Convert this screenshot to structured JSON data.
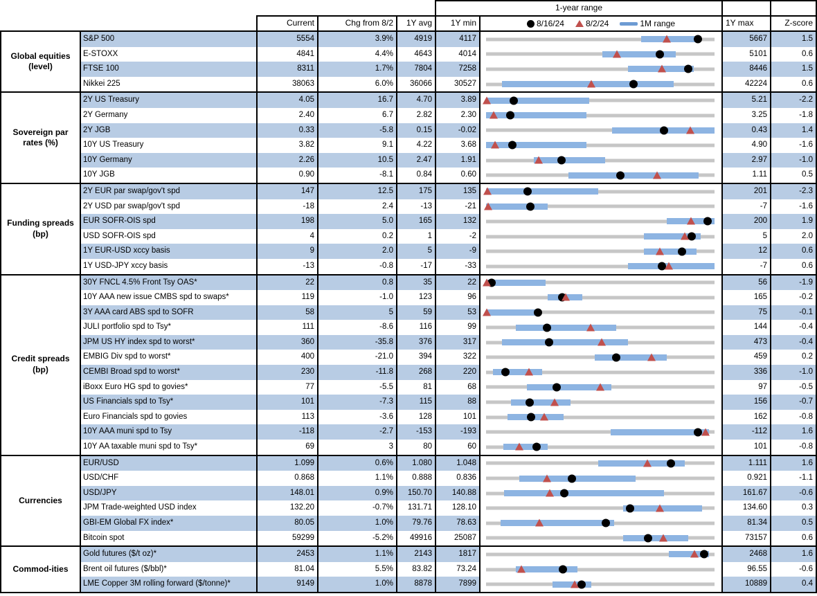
{
  "header": {
    "range_title": "1-year range",
    "cols": {
      "current": "Current",
      "chg": "Chg from 8/2",
      "avg": "1Y avg",
      "min": "1Y min",
      "max": "1Y max",
      "z": "Z-score"
    },
    "legend": {
      "dot": "8/16/24",
      "triangle": "8/2/24",
      "bar": "1M range"
    }
  },
  "colors": {
    "row_shade": "#b8cce4",
    "range_bar": "#8db4e2",
    "track": "#c6c6c6",
    "triangle": "#c0504d",
    "dot": "#000000",
    "legend_dash": "#6d9bd3",
    "border": "#000000"
  },
  "chart_data": {
    "type": "range-dot-table",
    "legend_position": "top",
    "marker_meaning": {
      "dot": "value on 8/16/24",
      "triangle": "value on 8/2/24",
      "bar": "1M range",
      "track": "1-year range from 1Y min to 1Y max"
    },
    "sections": [
      {
        "category": "Global equities (level)",
        "rows": [
          {
            "label": "S&P 500",
            "current": "5554",
            "chg": "3.9%",
            "avg": "4919",
            "min": "4117",
            "max": "5667",
            "z": "1.5",
            "bar": [
              0.68,
              0.93
            ],
            "dot": 0.927,
            "tri": 0.792
          },
          {
            "label": "E-STOXX",
            "current": "4841",
            "chg": "4.4%",
            "avg": "4643",
            "min": "4014",
            "max": "5101",
            "z": "0.6",
            "bar": [
              0.51,
              0.83
            ],
            "dot": 0.761,
            "tri": 0.573
          },
          {
            "label": "FTSE 100",
            "current": "8311",
            "chg": "1.7%",
            "avg": "7804",
            "min": "7258",
            "max": "8446",
            "z": "1.5",
            "bar": [
              0.62,
              0.91
            ],
            "dot": 0.886,
            "tri": 0.769
          },
          {
            "label": "Nikkei 225",
            "current": "38063",
            "chg": "6.0%",
            "avg": "36066",
            "min": "30527",
            "max": "42224",
            "z": "0.6",
            "bar": [
              0.07,
              0.82
            ],
            "dot": 0.644,
            "tri": 0.46
          }
        ]
      },
      {
        "category": "Sovereign par rates (%)",
        "rows": [
          {
            "label": "2Y US Treasury",
            "current": "4.05",
            "chg": "16.7",
            "avg": "4.70",
            "min": "3.89",
            "max": "5.21",
            "z": "-2.2",
            "bar": [
              0.0,
              0.45
            ],
            "dot": 0.121,
            "tri": 0.004
          },
          {
            "label": "2Y Germany",
            "current": "2.40",
            "chg": "6.7",
            "avg": "2.82",
            "min": "2.30",
            "max": "3.25",
            "z": "-1.8",
            "bar": [
              0.0,
              0.44
            ],
            "dot": 0.105,
            "tri": 0.032
          },
          {
            "label": "2Y JGB",
            "current": "0.33",
            "chg": "-5.8",
            "avg": "0.15",
            "min": "-0.02",
            "max": "0.43",
            "z": "1.4",
            "bar": [
              0.55,
              1.0
            ],
            "dot": 0.778,
            "tri": 0.895
          },
          {
            "label": "10Y US Treasury",
            "current": "3.82",
            "chg": "9.1",
            "avg": "4.22",
            "min": "3.68",
            "max": "4.90",
            "z": "-1.6",
            "bar": [
              0.0,
              0.44
            ],
            "dot": 0.115,
            "tri": 0.04
          },
          {
            "label": "10Y Germany",
            "current": "2.26",
            "chg": "10.5",
            "avg": "2.47",
            "min": "1.91",
            "max": "2.97",
            "z": "-1.0",
            "bar": [
              0.21,
              0.52
            ],
            "dot": 0.33,
            "tri": 0.231
          },
          {
            "label": "10Y JGB",
            "current": "0.90",
            "chg": "-8.1",
            "avg": "0.84",
            "min": "0.60",
            "max": "1.11",
            "z": "0.5",
            "bar": [
              0.36,
              0.93
            ],
            "dot": 0.588,
            "tri": 0.747
          }
        ]
      },
      {
        "category": "Funding spreads (bp)",
        "rows": [
          {
            "label": "2Y EUR par swap/gov't spd",
            "current": "147",
            "chg": "12.5",
            "avg": "175",
            "min": "135",
            "max": "201",
            "z": "-2.3",
            "bar": [
              0.0,
              0.49
            ],
            "dot": 0.182,
            "tri": 0.005
          },
          {
            "label": "2Y USD par swap/gov't spd",
            "current": "-18",
            "chg": "2.4",
            "avg": "-13",
            "min": "-21",
            "max": "-7",
            "z": "-1.6",
            "bar": [
              0.0,
              0.27
            ],
            "dot": 0.195,
            "tri": 0.01
          },
          {
            "label": "EUR SOFR-OIS spd",
            "current": "198",
            "chg": "5.0",
            "avg": "165",
            "min": "132",
            "max": "200",
            "z": "1.9",
            "bar": [
              0.79,
              1.0
            ],
            "dot": 0.97,
            "tri": 0.897
          },
          {
            "label": "USD SOFR-OIS spd",
            "current": "4",
            "chg": "0.2",
            "avg": "1",
            "min": "-2",
            "max": "5",
            "z": "2.0",
            "bar": [
              0.69,
              0.94
            ],
            "dot": 0.9,
            "tri": 0.87
          },
          {
            "label": "1Y EUR-USD xccy basis",
            "current": "9",
            "chg": "2.0",
            "avg": "5",
            "min": "-9",
            "max": "12",
            "z": "0.6",
            "bar": [
              0.69,
              0.92
            ],
            "dot": 0.857,
            "tri": 0.762
          },
          {
            "label": "1Y USD-JPY xccy basis",
            "current": "-13",
            "chg": "-0.8",
            "avg": "-17",
            "min": "-33",
            "max": "-7",
            "z": "0.6",
            "bar": [
              0.62,
              1.0
            ],
            "dot": 0.769,
            "tri": 0.8
          }
        ]
      },
      {
        "category": "Credit spreads (bp)",
        "rows": [
          {
            "label": "30Y FNCL 4.5% Front Tsy OAS*",
            "current": "22",
            "chg": "0.8",
            "avg": "35",
            "min": "22",
            "max": "56",
            "z": "-1.9",
            "bar": [
              0.0,
              0.26
            ],
            "dot": 0.025,
            "tri": 0.002
          },
          {
            "label": "10Y AAA new issue CMBS spd to swaps*",
            "current": "119",
            "chg": "-1.0",
            "avg": "123",
            "min": "96",
            "max": "165",
            "z": "-0.2",
            "bar": [
              0.27,
              0.42
            ],
            "dot": 0.333,
            "tri": 0.348
          },
          {
            "label": "3Y AAA card ABS spd to SOFR",
            "current": "58",
            "chg": "5",
            "avg": "59",
            "min": "53",
            "max": "75",
            "z": "-0.1",
            "bar": [
              0.0,
              0.23
            ],
            "dot": 0.227,
            "tri": 0.002
          },
          {
            "label": "JULI portfolio spd to Tsy*",
            "current": "111",
            "chg": "-8.6",
            "avg": "116",
            "min": "99",
            "max": "144",
            "z": "-0.4",
            "bar": [
              0.13,
              0.57
            ],
            "dot": 0.267,
            "tri": 0.458
          },
          {
            "label": "JPM US HY index spd to worst*",
            "current": "360",
            "chg": "-35.8",
            "avg": "376",
            "min": "317",
            "max": "473",
            "z": "-0.4",
            "bar": [
              0.07,
              0.62
            ],
            "dot": 0.276,
            "tri": 0.505
          },
          {
            "label": "EMBIG Div spd to worst*",
            "current": "400",
            "chg": "-21.0",
            "avg": "394",
            "min": "322",
            "max": "459",
            "z": "0.2",
            "bar": [
              0.475,
              0.79
            ],
            "dot": 0.569,
            "tri": 0.723
          },
          {
            "label": "CEMBI Broad spd to worst*",
            "current": "230",
            "chg": "-11.8",
            "avg": "268",
            "min": "220",
            "max": "336",
            "z": "-1.0",
            "bar": [
              0.03,
              0.245
            ],
            "dot": 0.086,
            "tri": 0.188
          },
          {
            "label": "iBoxx Euro HG spd to govies*",
            "current": "77",
            "chg": "-5.5",
            "avg": "81",
            "min": "68",
            "max": "97",
            "z": "-0.5",
            "bar": [
              0.18,
              0.55
            ],
            "dot": 0.31,
            "tri": 0.5
          },
          {
            "label": "US Financials spd to Tsy*",
            "current": "101",
            "chg": "-7.3",
            "avg": "115",
            "min": "88",
            "max": "156",
            "z": "-0.7",
            "bar": [
              0.11,
              0.37
            ],
            "dot": 0.191,
            "tri": 0.299
          },
          {
            "label": "Euro Financials spd to govies",
            "current": "113",
            "chg": "-3.6",
            "avg": "128",
            "min": "101",
            "max": "162",
            "z": "-0.8",
            "bar": [
              0.095,
              0.34
            ],
            "dot": 0.197,
            "tri": 0.256
          },
          {
            "label": "10Y AAA muni spd to Tsy",
            "current": "-118",
            "chg": "-2.7",
            "avg": "-153",
            "min": "-193",
            "max": "-112",
            "z": "1.6",
            "bar": [
              0.545,
              0.975
            ],
            "dot": 0.926,
            "tri": 0.96
          },
          {
            "label": "10Y AA taxable muni spd to Tsy*",
            "current": "69",
            "chg": "3",
            "avg": "80",
            "min": "60",
            "max": "101",
            "z": "-0.8",
            "bar": [
              0.075,
              0.27
            ],
            "dot": 0.22,
            "tri": 0.146
          }
        ]
      },
      {
        "category": "Currencies",
        "rows": [
          {
            "label": "EUR/USD",
            "current": "1.099",
            "chg": "0.6%",
            "avg": "1.080",
            "min": "1.048",
            "max": "1.111",
            "z": "1.6",
            "bar": [
              0.49,
              0.87
            ],
            "dot": 0.81,
            "tri": 0.705
          },
          {
            "label": "USD/CHF",
            "current": "0.868",
            "chg": "1.1%",
            "avg": "0.888",
            "min": "0.836",
            "max": "0.921",
            "z": "-1.1",
            "bar": [
              0.145,
              0.655
            ],
            "dot": 0.376,
            "tri": 0.266
          },
          {
            "label": "USD/JPY",
            "current": "148.01",
            "chg": "0.9%",
            "avg": "150.70",
            "min": "140.88",
            "max": "161.67",
            "z": "-0.6",
            "bar": [
              0.08,
              0.78
            ],
            "dot": 0.343,
            "tri": 0.279
          },
          {
            "label": "JPM Trade-weighted USD index",
            "current": "132.20",
            "chg": "-0.7%",
            "avg": "131.71",
            "min": "128.10",
            "max": "134.60",
            "z": "0.3",
            "bar": [
              0.6,
              0.945
            ],
            "dot": 0.631,
            "tri": 0.76
          },
          {
            "label": "GBI-EM Global FX index*",
            "current": "80.05",
            "chg": "1.0%",
            "avg": "79.76",
            "min": "78.63",
            "max": "81.34",
            "z": "0.5",
            "bar": [
              0.065,
              0.56
            ],
            "dot": 0.524,
            "tri": 0.232
          },
          {
            "label": "Bitcoin spot",
            "current": "59299",
            "chg": "-5.2%",
            "avg": "49916",
            "min": "25087",
            "max": "73157",
            "z": "0.6",
            "bar": [
              0.6,
              0.885
            ],
            "dot": 0.71,
            "tri": 0.775
          }
        ]
      },
      {
        "category": "Commod-ities",
        "rows": [
          {
            "label": "Gold futures ($/t oz)*",
            "current": "2453",
            "chg": "1.1%",
            "avg": "2143",
            "min": "1817",
            "max": "2468",
            "z": "1.6",
            "bar": [
              0.8,
              0.975
            ],
            "dot": 0.955,
            "tri": 0.912
          },
          {
            "label": "Brent oil futures ($/bbl)*",
            "current": "81.04",
            "chg": "5.5%",
            "avg": "83.82",
            "min": "73.24",
            "max": "96.55",
            "z": "-0.6",
            "bar": [
              0.13,
              0.4
            ],
            "dot": 0.335,
            "tri": 0.154
          },
          {
            "label": "LME Copper 3M rolling forward ($/tonne)*",
            "current": "9149",
            "chg": "1.0%",
            "avg": "8878",
            "min": "7899",
            "max": "10889",
            "z": "0.4",
            "bar": [
              0.29,
              0.46
            ],
            "dot": 0.418,
            "tri": 0.388
          }
        ]
      }
    ]
  }
}
